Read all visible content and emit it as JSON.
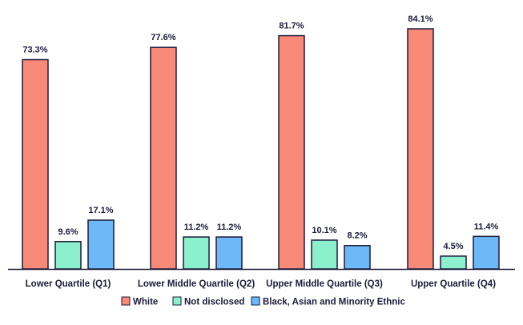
{
  "chart_data": {
    "type": "bar",
    "title": "",
    "xlabel": "",
    "ylabel": "",
    "categories": [
      "Lower Quartile (Q1)",
      "Lower Middle Quartile (Q2)",
      "Upper Middle Quartile (Q3)",
      "Upper Quartile (Q4)"
    ],
    "series": [
      {
        "name": "White",
        "values": [
          73.3,
          77.6,
          81.7,
          84.1
        ],
        "labels": [
          "73.3%",
          "77.6%",
          "81.7%",
          "84.1%"
        ],
        "color": "#fa8a78"
      },
      {
        "name": "Not disclosed",
        "values": [
          9.6,
          11.2,
          10.1,
          4.5
        ],
        "labels": [
          "9.6%",
          "11.2%",
          "10.1%",
          "4.5%"
        ],
        "color": "#8df0cc"
      },
      {
        "name": "Black, Asian and Minority Ethnic",
        "values": [
          17.1,
          11.2,
          8.2,
          11.4
        ],
        "labels": [
          "17.1%",
          "11.2%",
          "8.2%",
          "11.4%"
        ],
        "color": "#6db8f7"
      }
    ],
    "ylim": [
      0,
      84.1
    ],
    "grid": false,
    "legend_position": "bottom-center",
    "bar_outline_color": "#1b1b3a",
    "axis_color": "#1b1b3a"
  }
}
